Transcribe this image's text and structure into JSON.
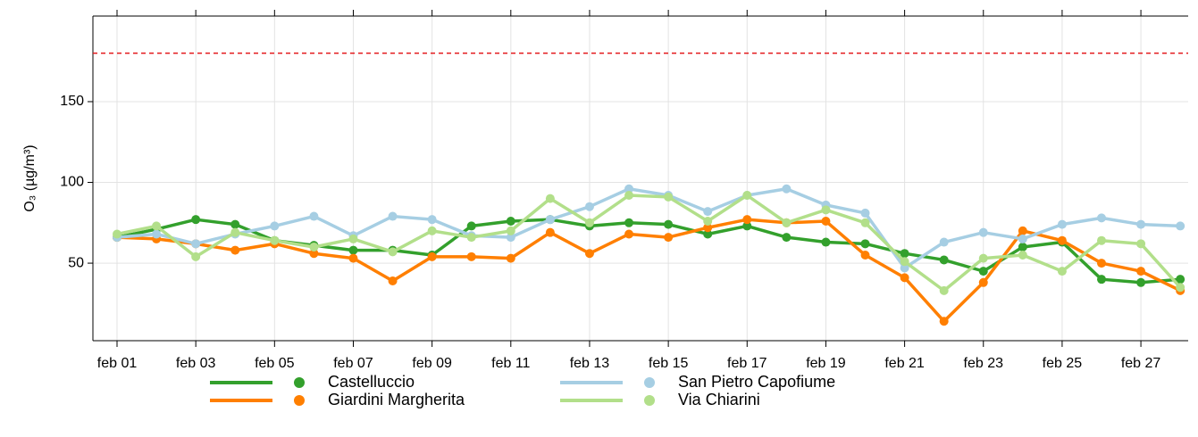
{
  "chart_data": {
    "type": "line",
    "y_label": "O₃ (µg/m³)",
    "categories": [
      "feb 01",
      null,
      "feb 03",
      null,
      "feb 05",
      null,
      "feb 07",
      null,
      "feb 09",
      null,
      "feb 11",
      null,
      "feb 13",
      null,
      "feb 15",
      null,
      "feb 17",
      null,
      "feb 19",
      null,
      "feb 21",
      null,
      "feb 23",
      null,
      "feb 25",
      null,
      "feb 27",
      null
    ],
    "ylim": [
      2,
      203
    ],
    "yticks": [
      50,
      100,
      150
    ],
    "grid": true,
    "threshold": 180,
    "threshold_color": "#e31a1c",
    "legend_position": "bottom",
    "series": [
      {
        "name": "Castelluccio",
        "color": "#33a02c",
        "values": [
          66,
          71,
          77,
          74,
          64,
          61,
          58,
          58,
          55,
          73,
          76,
          77,
          73,
          75,
          74,
          68,
          73,
          66,
          63,
          62,
          56,
          52,
          45,
          60,
          63,
          40,
          38,
          40
        ]
      },
      {
        "name": "Giardini Margherita",
        "color": "#ff7f00",
        "values": [
          66,
          65,
          62,
          58,
          62,
          56,
          53,
          39,
          54,
          54,
          53,
          69,
          56,
          68,
          66,
          72,
          77,
          75,
          76,
          55,
          41,
          14,
          38,
          70,
          64,
          50,
          45,
          33
        ]
      },
      {
        "name": "San Pietro Capofiume",
        "color": "#a6cee3",
        "values": [
          66,
          68,
          62,
          68,
          73,
          79,
          67,
          79,
          77,
          67,
          66,
          77,
          85,
          96,
          92,
          82,
          92,
          96,
          86,
          81,
          47,
          63,
          69,
          65,
          74,
          78,
          74,
          73
        ]
      },
      {
        "name": "Via Chiarini",
        "color": "#b2df8a",
        "values": [
          68,
          73,
          54,
          69,
          64,
          60,
          65,
          57,
          70,
          66,
          70,
          90,
          75,
          92,
          91,
          76,
          92,
          75,
          83,
          75,
          51,
          33,
          53,
          55,
          45,
          64,
          62,
          35
        ]
      }
    ]
  }
}
